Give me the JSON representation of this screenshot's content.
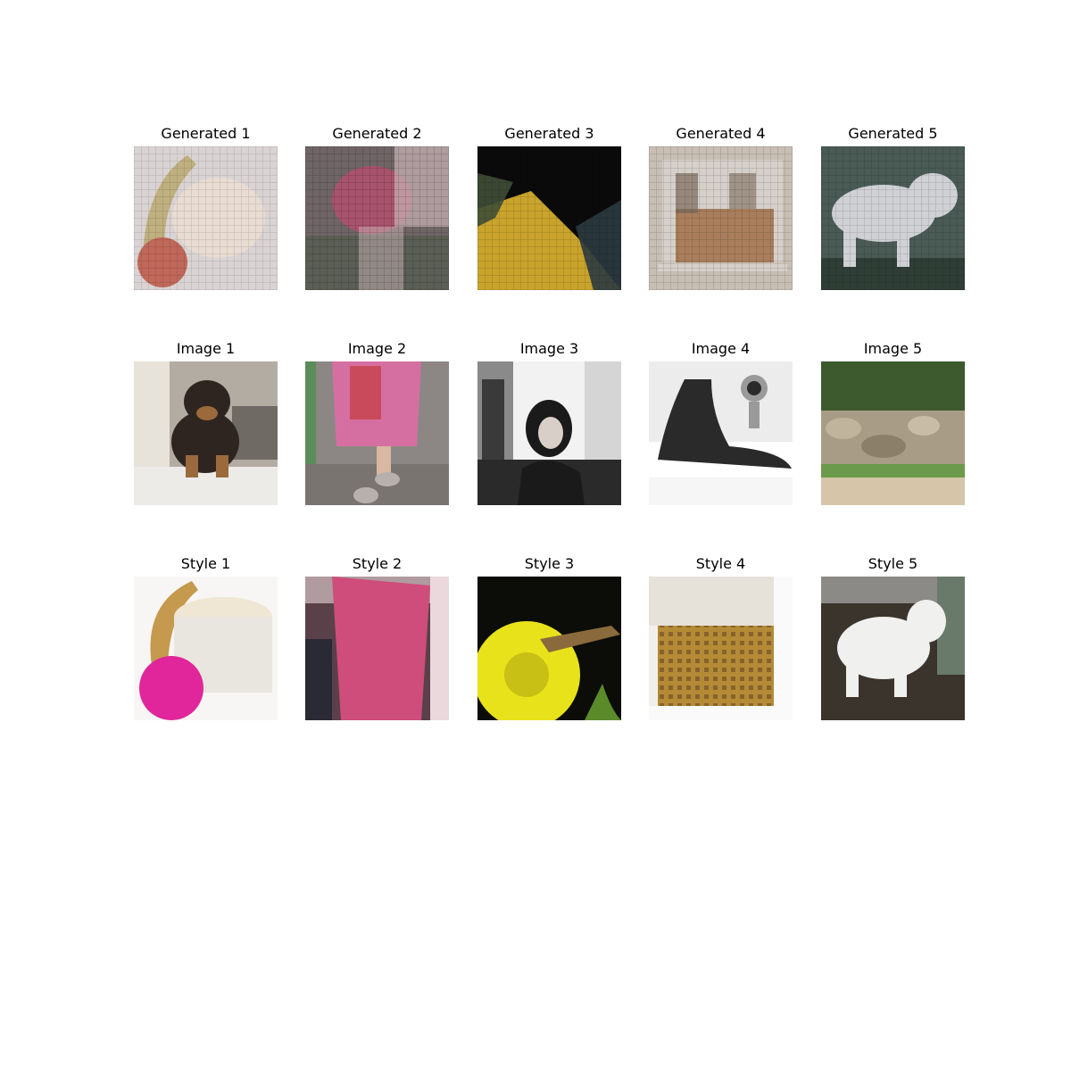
{
  "figure": {
    "background": "#ffffff",
    "rows": [
      {
        "name": "generated",
        "panels": [
          {
            "title": "Generated 1",
            "scene": "gen-cream-jar",
            "palette": {
              "bg": "#d9d4d3",
              "a": "#e9dcd2",
              "b": "#c0685a",
              "c": "#b9a56a"
            }
          },
          {
            "title": "Generated 2",
            "scene": "gen-pink-blur",
            "palette": {
              "bg": "#6f6466",
              "a": "#b3506f",
              "b": "#c9b4b6",
              "c": "#4c5a48"
            }
          },
          {
            "title": "Generated 3",
            "scene": "gen-yellow-dark",
            "palette": {
              "bg": "#0a0a0a",
              "a": "#c9a32c",
              "b": "#3f4e36",
              "c": "#2b3a40"
            }
          },
          {
            "title": "Generated 4",
            "scene": "gen-box",
            "palette": {
              "bg": "#c8bfb4",
              "a": "#a97e5c",
              "b": "#7a6a5c",
              "c": "#d6d0ca"
            }
          },
          {
            "title": "Generated 5",
            "scene": "gen-dog",
            "palette": {
              "bg": "#4a5a55",
              "a": "#cfd1d4",
              "b": "#2f3e36",
              "c": "#6f7c78"
            }
          }
        ]
      },
      {
        "name": "content",
        "panels": [
          {
            "title": "Image 1",
            "scene": "puppy",
            "palette": {
              "bg": "#b3aca2",
              "a": "#2e2520",
              "b": "#9a6a3c",
              "c": "#ecebe8"
            }
          },
          {
            "title": "Image 2",
            "scene": "pink-legs",
            "palette": {
              "bg": "#8c8784",
              "a": "#d66fa1",
              "b": "#b8b0ae",
              "c": "#5b8c5a"
            }
          },
          {
            "title": "Image 3",
            "scene": "bw-woman",
            "palette": {
              "bg": "#d5d5d5",
              "a": "#1a1a1a",
              "b": "#8a8a8a",
              "c": "#f2f2f2"
            }
          },
          {
            "title": "Image 4",
            "scene": "sketch-hair",
            "palette": {
              "bg": "#ececec",
              "a": "#2a2a2a",
              "b": "#9a9a9a",
              "c": "#ffffff"
            }
          },
          {
            "title": "Image 5",
            "scene": "stone-wall",
            "palette": {
              "bg": "#4f7a3a",
              "a": "#a99c86",
              "b": "#d6c5a8",
              "c": "#3c5a2e"
            }
          }
        ]
      },
      {
        "name": "style",
        "panels": [
          {
            "title": "Style 1",
            "scene": "cream-jar",
            "palette": {
              "bg": "#f8f6f4",
              "a": "#efe6d4",
              "b": "#e0269a",
              "c": "#c59a4e"
            }
          },
          {
            "title": "Style 2",
            "scene": "pink-scarf",
            "palette": {
              "bg": "#5a4048",
              "a": "#cf4d7a",
              "b": "#2a2a34",
              "c": "#ead8dc"
            }
          },
          {
            "title": "Style 3",
            "scene": "grasshopper-flower",
            "palette": {
              "bg": "#0c0c08",
              "a": "#e8e21a",
              "b": "#8a6a3c",
              "c": "#5a8a2a"
            }
          },
          {
            "title": "Style 4",
            "scene": "beehive",
            "palette": {
              "bg": "#f2f0ec",
              "a": "#b58a36",
              "b": "#5a3a20",
              "c": "#e6e2da"
            }
          },
          {
            "title": "Style 5",
            "scene": "white-dog",
            "palette": {
              "bg": "#3a342c",
              "a": "#f0f0ee",
              "b": "#6a7a6a",
              "c": "#8c8a86"
            }
          }
        ]
      }
    ]
  }
}
